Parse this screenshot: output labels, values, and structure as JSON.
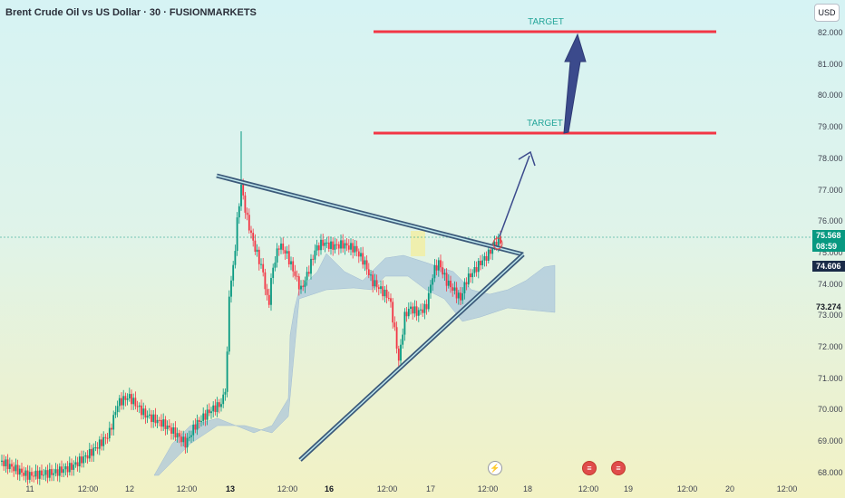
{
  "header": {
    "title": "Brent Crude Oil vs US Dollar · 30 · FUSIONMARKETS",
    "currency": "USD"
  },
  "price_axis": {
    "ticks": [
      "82.000",
      "81.000",
      "80.000",
      "79.000",
      "78.000",
      "77.000",
      "76.000",
      "75.000",
      "74.000",
      "73.000",
      "72.000",
      "71.000",
      "70.000",
      "69.000",
      "68.000"
    ],
    "current_price": "75.568",
    "countdown": "08:59",
    "level_1": "74.606",
    "level_2": "73.274"
  },
  "time_axis": {
    "ticks": [
      "11",
      "12:00",
      "12",
      "12:00",
      "13",
      "12:00",
      "16",
      "12:00",
      "17",
      "12:00",
      "18",
      "12:00",
      "19",
      "12:00",
      "20",
      "12:00"
    ]
  },
  "annotations": {
    "target_upper": "TARGET",
    "target_lower": "TARGET"
  },
  "events": {
    "bolt_icon": "lightning-icon",
    "flag_icon": "us-flag-icon"
  },
  "colors": {
    "up": "#089981",
    "down": "#f23645",
    "target_line": "#f23645",
    "trendline": "#3c5a7a",
    "arrow": "#3b4a8c"
  }
}
